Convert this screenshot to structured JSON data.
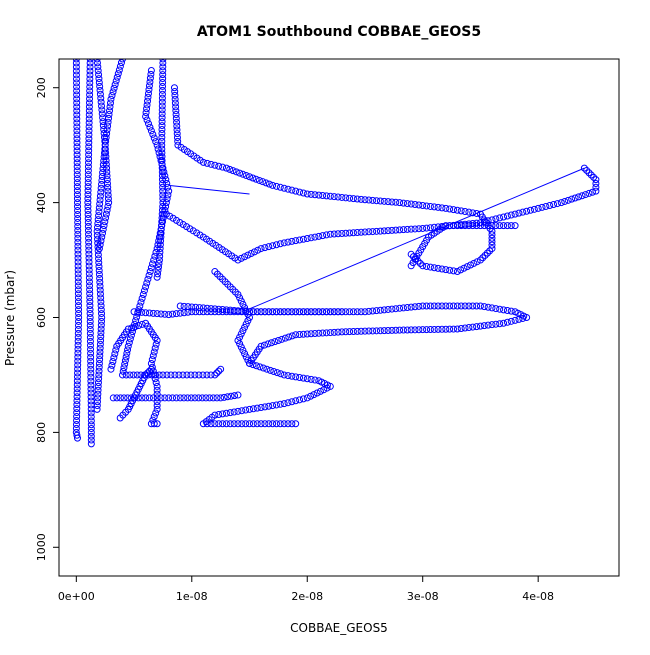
{
  "chart_data": {
    "type": "scatter",
    "title": "ATOM1 Southbound COBBAE_GEOS5",
    "xlabel": "COBBAE_GEOS5",
    "ylabel": "Pressure (mbar)",
    "xlim": [
      -1.5e-09,
      4.7e-08
    ],
    "ylim": [
      1050,
      150
    ],
    "y_reversed": true,
    "x_ticks": [
      0,
      1e-08,
      2e-08,
      3e-08,
      4e-08
    ],
    "x_tick_labels": [
      "0e+00",
      "1e-08",
      "2e-08",
      "3e-08",
      "4e-08"
    ],
    "y_ticks": [
      200,
      400,
      600,
      800,
      1000
    ],
    "y_tick_labels": [
      "200",
      "400",
      "600",
      "800",
      "1000"
    ],
    "grid": false,
    "legend": "none",
    "marker": "open-circle",
    "series_color": "#0000ff",
    "series": [
      {
        "points": [
          [
            0,
            150
          ],
          [
            1e-10,
            400
          ],
          [
            2e-10,
            600
          ],
          [
            0,
            800
          ],
          [
            1e-10,
            810
          ]
        ]
      },
      {
        "points": [
          [
            1.2e-09,
            150
          ],
          [
            1e-09,
            400
          ],
          [
            1.2e-09,
            600
          ],
          [
            1.3e-09,
            780
          ],
          [
            1.3e-09,
            820
          ]
        ]
      },
      {
        "points": [
          [
            1.8e-09,
            150
          ],
          [
            2.5e-09,
            300
          ],
          [
            1.8e-09,
            450
          ],
          [
            2.2e-09,
            600
          ],
          [
            1.8e-09,
            760
          ]
        ]
      },
      {
        "points": [
          [
            4e-09,
            150
          ],
          [
            3e-09,
            220
          ],
          [
            2.5e-09,
            300
          ],
          [
            2.8e-09,
            400
          ],
          [
            2e-09,
            480
          ]
        ]
      },
      {
        "points": [
          [
            7.5e-09,
            150
          ],
          [
            7.4e-09,
            300
          ],
          [
            7.5e-09,
            400
          ],
          [
            7.2e-09,
            500
          ],
          [
            7e-09,
            530
          ]
        ]
      },
      {
        "points": [
          [
            6.5e-09,
            170
          ],
          [
            6e-09,
            250
          ],
          [
            7e-09,
            300
          ],
          [
            8e-09,
            380
          ],
          [
            7e-09,
            480
          ],
          [
            5.5e-09,
            580
          ],
          [
            4.5e-09,
            650
          ],
          [
            4e-09,
            700
          ],
          [
            7.5e-09,
            700
          ],
          [
            1.2e-08,
            700
          ],
          [
            1.25e-08,
            690
          ]
        ]
      },
      {
        "points": [
          [
            8.5e-09,
            200
          ],
          [
            8.8e-09,
            300
          ],
          [
            1.1e-08,
            330
          ],
          [
            1.3e-08,
            340
          ],
          [
            1.5e-08,
            355
          ],
          [
            1.7e-08,
            370
          ],
          [
            2e-08,
            385
          ],
          [
            2.5e-08,
            395
          ],
          [
            2.8e-08,
            400
          ],
          [
            3.2e-08,
            410
          ],
          [
            3.5e-08,
            420
          ],
          [
            3.6e-08,
            450
          ],
          [
            3.6e-08,
            480
          ],
          [
            3.5e-08,
            500
          ],
          [
            3.3e-08,
            520
          ],
          [
            3e-08,
            510
          ],
          [
            2.9e-08,
            490
          ]
        ]
      },
      {
        "points": [
          [
            2.9e-08,
            510
          ],
          [
            3.05e-08,
            460
          ],
          [
            3.2e-08,
            440
          ],
          [
            3.5e-08,
            440
          ],
          [
            3.8e-08,
            440
          ]
        ]
      },
      {
        "points": [
          [
            7.8e-09,
            420
          ],
          [
            1.1e-08,
            460
          ],
          [
            1.4e-08,
            500
          ],
          [
            1.6e-08,
            480
          ],
          [
            1.8e-08,
            470
          ],
          [
            2.2e-08,
            455
          ],
          [
            2.6e-08,
            450
          ],
          [
            3e-08,
            445
          ],
          [
            3.5e-08,
            435
          ],
          [
            3.8e-08,
            420
          ],
          [
            4.2e-08,
            400
          ],
          [
            4.5e-08,
            380
          ],
          [
            4.5e-08,
            360
          ],
          [
            4.4e-08,
            340
          ]
        ]
      },
      {
        "points": [
          [
            5e-09,
            590
          ],
          [
            8e-09,
            595
          ],
          [
            1e-08,
            590
          ],
          [
            1.5e-08,
            590
          ],
          [
            2e-08,
            590
          ],
          [
            2.5e-08,
            590
          ],
          [
            3e-08,
            580
          ],
          [
            3.5e-08,
            580
          ],
          [
            3.8e-08,
            590
          ],
          [
            3.9e-08,
            600
          ],
          [
            3.7e-08,
            610
          ],
          [
            3.3e-08,
            620
          ],
          [
            2.8e-08,
            622
          ],
          [
            2.3e-08,
            625
          ],
          [
            1.9e-08,
            630
          ],
          [
            1.6e-08,
            650
          ],
          [
            1.5e-08,
            680
          ]
        ]
      },
      {
        "points": [
          [
            9e-09,
            580
          ],
          [
            1.5e-08,
            590
          ],
          [
            2e-08,
            590
          ],
          [
            2.3e-08,
            590
          ]
        ]
      },
      {
        "points": [
          [
            1.2e-08,
            520
          ],
          [
            1.4e-08,
            560
          ],
          [
            1.5e-08,
            600
          ],
          [
            1.4e-08,
            640
          ],
          [
            1.5e-08,
            680
          ],
          [
            1.8e-08,
            700
          ],
          [
            2.1e-08,
            710
          ],
          [
            2.2e-08,
            720
          ],
          [
            2e-08,
            740
          ],
          [
            1.8e-08,
            750
          ],
          [
            1.5e-08,
            760
          ],
          [
            1.2e-08,
            770
          ],
          [
            1.1e-08,
            785
          ],
          [
            1.5e-08,
            785
          ],
          [
            1.9e-08,
            785
          ]
        ]
      },
      {
        "points": [
          [
            3e-09,
            690
          ],
          [
            3.5e-09,
            650
          ],
          [
            4.5e-09,
            620
          ],
          [
            6e-09,
            610
          ],
          [
            7e-09,
            640
          ],
          [
            6.5e-09,
            680
          ],
          [
            7e-09,
            720
          ],
          [
            7e-09,
            760
          ],
          [
            6.5e-09,
            785
          ],
          [
            7e-09,
            785
          ]
        ]
      },
      {
        "points": [
          [
            3.2e-09,
            740
          ],
          [
            6e-09,
            740
          ],
          [
            9e-09,
            740
          ],
          [
            1.25e-08,
            740
          ],
          [
            1.4e-08,
            735
          ]
        ]
      },
      {
        "points": [
          [
            3.8e-09,
            775
          ],
          [
            4.5e-09,
            760
          ],
          [
            5e-09,
            740
          ],
          [
            5.5e-09,
            720
          ],
          [
            6e-09,
            700
          ],
          [
            6.5e-09,
            690
          ]
        ]
      }
    ],
    "lines": [
      {
        "from": [
          8e-09,
          370
        ],
        "to": [
          1.5e-08,
          385
        ]
      },
      {
        "from": [
          1.5e-08,
          585
        ],
        "to": [
          4.4e-08,
          340
        ]
      }
    ]
  }
}
